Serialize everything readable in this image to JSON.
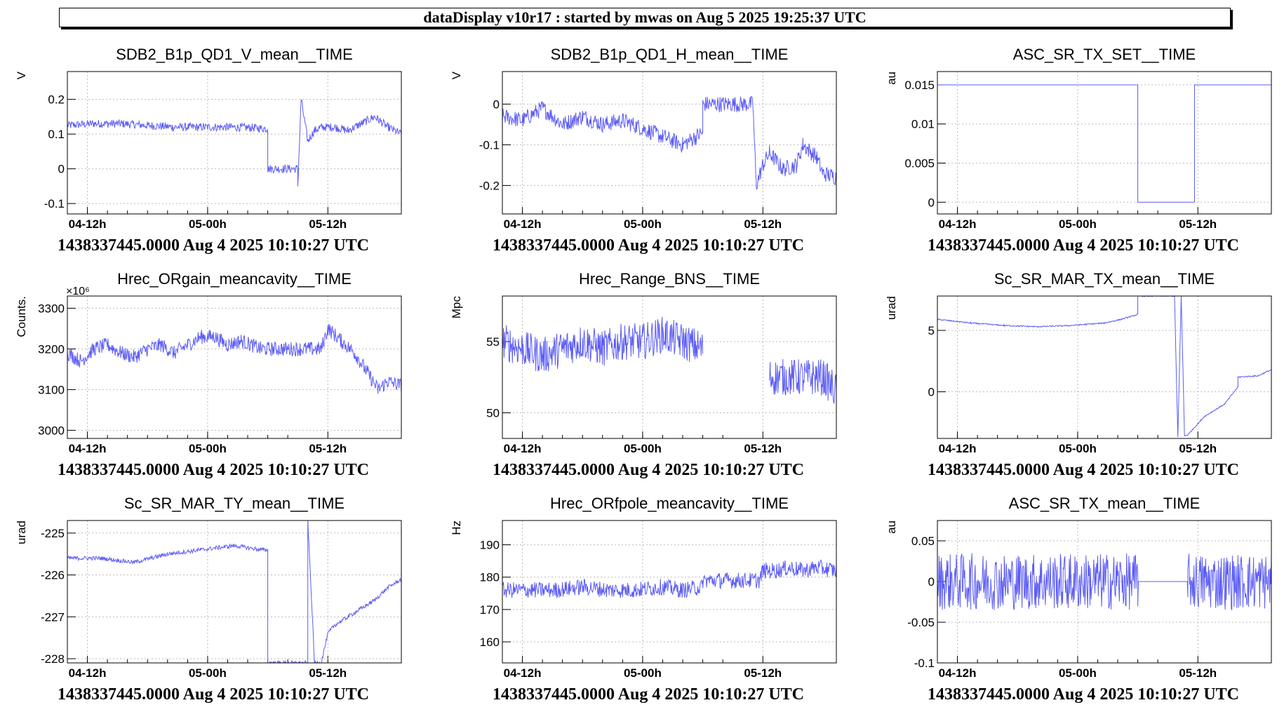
{
  "header": {
    "title": "dataDisplay v10r17 : started by mwas on Aug  5 2025 19:25:37 UTC"
  },
  "colors": {
    "trace": "#5c5cf5",
    "grid": "#bbbbbb",
    "axis": "#000000"
  },
  "chart_data": [
    {
      "type": "line",
      "title": "SDB2_B1p_QD1_V_mean__TIME",
      "ylabel": "V",
      "footer": "1438337445.0000 Aug 4 2025 10:10:27 UTC",
      "x_ticks": [
        "04-12h",
        "05-00h",
        "05-12h"
      ],
      "x_tick_pos": [
        0.06,
        0.42,
        0.78
      ],
      "ylim": [
        -0.13,
        0.28
      ],
      "y_ticks": [
        0.2,
        0.1,
        0,
        -0.1
      ],
      "y_tick_labels": [
        "0.2",
        "0.1",
        "0",
        "-0.1"
      ],
      "grid": true,
      "series": [
        {
          "x": [
            0,
            0.08,
            0.16,
            0.24,
            0.32,
            0.4,
            0.48,
            0.56,
            0.6,
            0.6,
            0.69,
            0.69,
            0.7,
            0.72,
            0.74,
            0.76,
            0.8,
            0.84,
            0.88,
            0.92,
            0.96,
            1.0
          ],
          "y": [
            0.125,
            0.13,
            0.13,
            0.125,
            0.12,
            0.12,
            0.12,
            0.118,
            0.115,
            0.0,
            0.0,
            -0.05,
            0.2,
            0.08,
            0.11,
            0.12,
            0.12,
            0.11,
            0.13,
            0.15,
            0.12,
            0.1
          ],
          "noise": 0.012
        }
      ]
    },
    {
      "type": "line",
      "title": "SDB2_B1p_QD1_H_mean__TIME",
      "ylabel": "V",
      "footer": "1438337445.0000 Aug 4 2025 10:10:27 UTC",
      "x_ticks": [
        "04-12h",
        "05-00h",
        "05-12h"
      ],
      "x_tick_pos": [
        0.06,
        0.42,
        0.78
      ],
      "ylim": [
        -0.27,
        0.08
      ],
      "y_ticks": [
        0,
        -0.1,
        -0.2
      ],
      "y_tick_labels": [
        "0",
        "-0.1",
        "-0.2"
      ],
      "grid": true,
      "series": [
        {
          "x": [
            0,
            0.06,
            0.12,
            0.18,
            0.24,
            0.3,
            0.36,
            0.42,
            0.48,
            0.54,
            0.6,
            0.6,
            0.75,
            0.76,
            0.78,
            0.8,
            0.84,
            0.88,
            0.9,
            0.94,
            0.96,
            1.0
          ],
          "y": [
            -0.03,
            -0.04,
            -0.01,
            -0.05,
            -0.03,
            -0.05,
            -0.04,
            -0.06,
            -0.08,
            -0.1,
            -0.07,
            0.0,
            0.0,
            -0.2,
            -0.15,
            -0.12,
            -0.16,
            -0.15,
            -0.1,
            -0.13,
            -0.17,
            -0.18
          ],
          "noise": 0.02
        }
      ]
    },
    {
      "type": "line",
      "title": "ASC_SR_TX_SET__TIME",
      "ylabel": "au",
      "footer": "1438337445.0000 Aug 4 2025 10:10:27 UTC",
      "x_ticks": [
        "04-12h",
        "05-00h",
        "05-12h"
      ],
      "x_tick_pos": [
        0.06,
        0.42,
        0.78
      ],
      "ylim": [
        -0.0015,
        0.0167
      ],
      "y_ticks": [
        0.015,
        0.01,
        0.005,
        0
      ],
      "y_tick_labels": [
        "0.015",
        "0.01",
        "0.005",
        "0"
      ],
      "grid": true,
      "series": [
        {
          "x": [
            0,
            0.6,
            0.6,
            0.77,
            0.77,
            1.0
          ],
          "y": [
            0.015,
            0.015,
            0.0,
            0.0,
            0.015,
            0.015
          ],
          "noise": 0
        }
      ]
    },
    {
      "type": "line",
      "title": "Hrec_ORgain_meancavity__TIME",
      "ylabel": "Counts.",
      "y_multiplier": "×10⁶",
      "footer": "1438337445.0000 Aug 4 2025 10:10:27 UTC",
      "x_ticks": [
        "04-12h",
        "05-00h",
        "05-12h"
      ],
      "x_tick_pos": [
        0.06,
        0.42,
        0.78
      ],
      "ylim": [
        2980,
        3330
      ],
      "y_ticks": [
        3300,
        3200,
        3100,
        3000
      ],
      "y_tick_labels": [
        "3300",
        "3200",
        "3100",
        "3000"
      ],
      "grid": true,
      "series": [
        {
          "x": [
            0,
            0.04,
            0.08,
            0.12,
            0.16,
            0.2,
            0.24,
            0.28,
            0.32,
            0.36,
            0.4,
            0.44,
            0.48,
            0.52,
            0.58,
            0.58,
            0.76,
            0.78,
            0.82,
            0.86,
            0.9,
            0.93,
            0.96,
            1.0
          ],
          "y": [
            3190,
            3170,
            3200,
            3210,
            3190,
            3180,
            3200,
            3210,
            3190,
            3210,
            3230,
            3230,
            3210,
            3220,
            3200,
            3200,
            3200,
            3250,
            3220,
            3190,
            3140,
            3100,
            3120,
            3110
          ],
          "noise": 18
        }
      ]
    },
    {
      "type": "line",
      "title": "Hrec_Range_BNS__TIME",
      "ylabel": "Mpc",
      "footer": "1438337445.0000 Aug 4 2025 10:10:27 UTC",
      "x_ticks": [
        "04-12h",
        "05-00h",
        "05-12h"
      ],
      "x_tick_pos": [
        0.06,
        0.42,
        0.78
      ],
      "ylim": [
        48.2,
        58.2
      ],
      "y_ticks": [
        55,
        50
      ],
      "y_tick_labels": [
        "55",
        "50"
      ],
      "grid": true,
      "series": [
        {
          "x": [
            0,
            0.06,
            0.12,
            0.18,
            0.24,
            0.3,
            0.36,
            0.42,
            0.48,
            0.54,
            0.6,
            0.77,
            0.8,
            0.84,
            0.88,
            0.92,
            0.96,
            1.0
          ],
          "y": [
            55,
            54.5,
            54,
            54.5,
            55,
            54.5,
            55,
            55,
            55.5,
            55,
            54.5,
            null,
            52.5,
            52.5,
            52.5,
            52.5,
            52.5,
            51.5
          ],
          "noise": 1.3
        }
      ]
    },
    {
      "type": "line",
      "title": "Sc_SR_MAR_TX_mean__TIME",
      "ylabel": "urad",
      "footer": "1438337445.0000 Aug 4 2025 10:10:27 UTC",
      "x_ticks": [
        "04-12h",
        "05-00h",
        "05-12h"
      ],
      "x_tick_pos": [
        0.06,
        0.42,
        0.78
      ],
      "ylim": [
        -3.8,
        7.8
      ],
      "y_ticks": [
        5,
        0
      ],
      "y_tick_labels": [
        "5",
        "0"
      ],
      "grid": true,
      "series": [
        {
          "x": [
            0,
            0.1,
            0.2,
            0.3,
            0.4,
            0.5,
            0.55,
            0.6,
            0.6,
            0.71,
            0.72,
            0.73,
            0.74,
            0.75,
            0.8,
            0.86,
            0.9,
            0.9,
            0.96,
            1.0
          ],
          "y": [
            5.9,
            5.6,
            5.4,
            5.3,
            5.4,
            5.6,
            5.9,
            6.3,
            7.8,
            7.8,
            -3.7,
            7.8,
            -3.6,
            -3.5,
            -2.0,
            -1.0,
            0.4,
            1.2,
            1.3,
            1.8
          ],
          "noise": 0.05
        }
      ]
    },
    {
      "type": "line",
      "title": "Sc_SR_MAR_TY_mean__TIME",
      "ylabel": "urad",
      "footer": "1438337445.0000 Aug 4 2025 10:10:27 UTC",
      "x_ticks": [
        "04-12h",
        "05-00h",
        "05-12h"
      ],
      "x_tick_pos": [
        0.06,
        0.42,
        0.78
      ],
      "ylim": [
        -228.1,
        -224.7
      ],
      "y_ticks": [
        -225,
        -226,
        -227,
        -228
      ],
      "y_tick_labels": [
        "-225",
        "-226",
        "-227",
        "-228"
      ],
      "grid": true,
      "series": [
        {
          "x": [
            0,
            0.1,
            0.2,
            0.3,
            0.4,
            0.5,
            0.58,
            0.6,
            0.6,
            0.72,
            0.72,
            0.74,
            0.76,
            0.78,
            0.8,
            0.84,
            0.88,
            0.92,
            0.96,
            1.0
          ],
          "y": [
            -225.6,
            -225.6,
            -225.7,
            -225.5,
            -225.4,
            -225.3,
            -225.4,
            -225.4,
            -228.1,
            -228.1,
            -224.7,
            -228.1,
            -228.1,
            -227.4,
            -227.2,
            -227.0,
            -226.8,
            -226.6,
            -226.3,
            -226.1
          ],
          "noise": 0.05
        }
      ]
    },
    {
      "type": "line",
      "title": "Hrec_ORfpole_meancavity__TIME",
      "ylabel": "Hz",
      "footer": "1438337445.0000 Aug 4 2025 10:10:27 UTC",
      "x_ticks": [
        "04-12h",
        "05-00h",
        "05-12h"
      ],
      "x_tick_pos": [
        0.06,
        0.42,
        0.78
      ],
      "ylim": [
        153.5,
        197.5
      ],
      "y_ticks": [
        190,
        180,
        170,
        160
      ],
      "y_tick_labels": [
        "190",
        "180",
        "170",
        "160"
      ],
      "grid": true,
      "series": [
        {
          "x": [
            0,
            0.08,
            0.16,
            0.24,
            0.32,
            0.4,
            0.48,
            0.54,
            0.6,
            0.6,
            0.77,
            0.78,
            0.82,
            0.86,
            0.9,
            0.94,
            1.0
          ],
          "y": [
            176,
            176,
            176,
            177,
            176,
            176,
            177,
            176,
            177,
            179,
            179,
            182,
            182,
            183,
            182,
            183,
            182
          ],
          "noise": 2.5
        }
      ]
    },
    {
      "type": "line",
      "title": "ASC_SR_TX_mean__TIME",
      "ylabel": "au",
      "footer": "1438337445.0000 Aug 4 2025 10:10:27 UTC",
      "x_ticks": [
        "04-12h",
        "05-00h",
        "05-12h"
      ],
      "x_tick_pos": [
        0.06,
        0.42,
        0.78
      ],
      "ylim": [
        -0.1,
        0.075
      ],
      "y_ticks": [
        0.05,
        0,
        -0.05,
        -0.1
      ],
      "y_tick_labels": [
        "0.05",
        "0",
        "-0.05",
        "-0.1"
      ],
      "grid": true,
      "series": [
        {
          "x": [
            0,
            0.1,
            0.2,
            0.3,
            0.4,
            0.5,
            0.6,
            0.6,
            0.75,
            0.75,
            0.8,
            0.9,
            1.0
          ],
          "y": [
            0,
            0,
            0,
            0,
            0,
            0,
            0,
            0,
            0,
            0,
            0,
            0,
            0
          ],
          "noise": 0.035,
          "quiet": [
            0.6,
            0.75
          ]
        }
      ]
    }
  ]
}
